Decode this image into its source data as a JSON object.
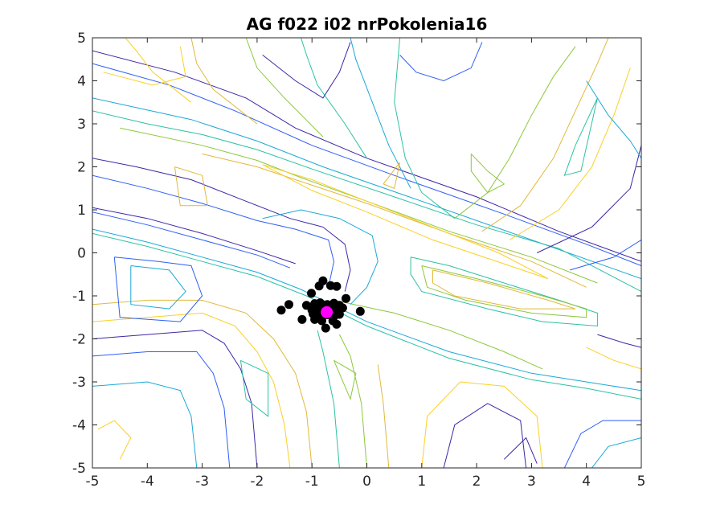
{
  "chart_data": {
    "type": "scatter",
    "title": "AG f022 i02 nrPokolenia16",
    "xlabel": "",
    "ylabel": "",
    "xlim": [
      -5,
      5
    ],
    "ylim": [
      -5,
      5
    ],
    "xticks": [
      -5,
      -4,
      -3,
      -2,
      -1,
      0,
      1,
      2,
      3,
      4,
      5
    ],
    "yticks": [
      -5,
      -4,
      -3,
      -2,
      -1,
      0,
      1,
      2,
      3,
      4,
      5
    ],
    "grid": false,
    "background": "contour plot",
    "contour_colors": [
      "#3e26a8",
      "#2e5ff5",
      "#1aa9d8",
      "#2bc2a3",
      "#8cc83c",
      "#e0b93a",
      "#f9d026"
    ],
    "series": [
      {
        "marker_color": "#000000",
        "points": [
          [
            -0.8,
            -0.65
          ],
          [
            -0.87,
            -0.77
          ],
          [
            -0.66,
            -0.76
          ],
          [
            -0.55,
            -0.78
          ],
          [
            -1.01,
            -0.94
          ],
          [
            -0.38,
            -1.06
          ],
          [
            -1.42,
            -1.2
          ],
          [
            -1.56,
            -1.33
          ],
          [
            -1.1,
            -1.22
          ],
          [
            -0.95,
            -1.18
          ],
          [
            -0.85,
            -1.16
          ],
          [
            -0.72,
            -1.2
          ],
          [
            -0.6,
            -1.17
          ],
          [
            -0.5,
            -1.22
          ],
          [
            -1.0,
            -1.33
          ],
          [
            -0.9,
            -1.3
          ],
          [
            -0.78,
            -1.28
          ],
          [
            -0.68,
            -1.32
          ],
          [
            -0.55,
            -1.3
          ],
          [
            -0.44,
            -1.28
          ],
          [
            -0.98,
            -1.42
          ],
          [
            -0.85,
            -1.45
          ],
          [
            -0.72,
            -1.44
          ],
          [
            -0.6,
            -1.48
          ],
          [
            -0.5,
            -1.43
          ],
          [
            -0.12,
            -1.36
          ],
          [
            -1.18,
            -1.55
          ],
          [
            -0.95,
            -1.55
          ],
          [
            -0.82,
            -1.58
          ],
          [
            -0.62,
            -1.58
          ],
          [
            -0.55,
            -1.66
          ],
          [
            -0.75,
            -1.75
          ]
        ]
      },
      {
        "marker_color": "#ff00ff",
        "points": [
          [
            -0.73,
            -1.38
          ]
        ]
      }
    ]
  }
}
